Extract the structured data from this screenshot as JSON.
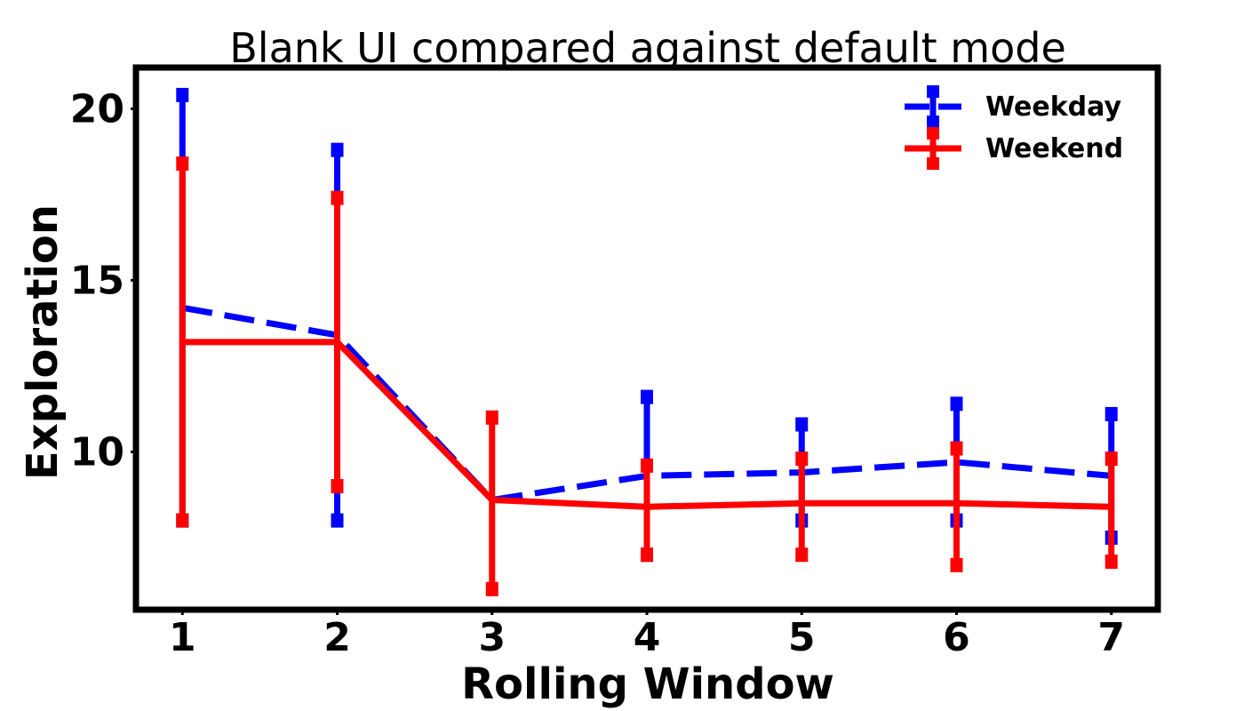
{
  "chart_data": {
    "type": "line",
    "title": "Blank UI compared against default mode",
    "xlabel": "Rolling Window",
    "ylabel": "Exploration",
    "x": [
      1,
      2,
      3,
      4,
      5,
      6,
      7
    ],
    "xlim": [
      0.7,
      7.3
    ],
    "ylim": [
      5.4,
      21.2
    ],
    "yticks": [
      10,
      15,
      20
    ],
    "grid": false,
    "legend_position": "top-right",
    "series": [
      {
        "name": "Weekday",
        "color": "#0000ff",
        "linestyle": "dashed",
        "values": [
          14.2,
          13.4,
          8.6,
          9.3,
          9.4,
          9.7,
          9.3
        ],
        "err_low": [
          8.0,
          8.0,
          8.6,
          7.0,
          8.0,
          8.0,
          7.5
        ],
        "err_high": [
          20.4,
          18.8,
          8.6,
          11.6,
          10.8,
          11.4,
          11.1
        ]
      },
      {
        "name": "Weekend",
        "color": "#ff0000",
        "linestyle": "solid",
        "values": [
          13.2,
          13.2,
          8.6,
          8.4,
          8.5,
          8.5,
          8.4
        ],
        "err_low": [
          8.0,
          9.0,
          6.0,
          7.0,
          7.0,
          6.7,
          6.8
        ],
        "err_high": [
          18.4,
          17.4,
          11.0,
          9.6,
          9.8,
          10.1,
          9.8
        ]
      }
    ]
  }
}
